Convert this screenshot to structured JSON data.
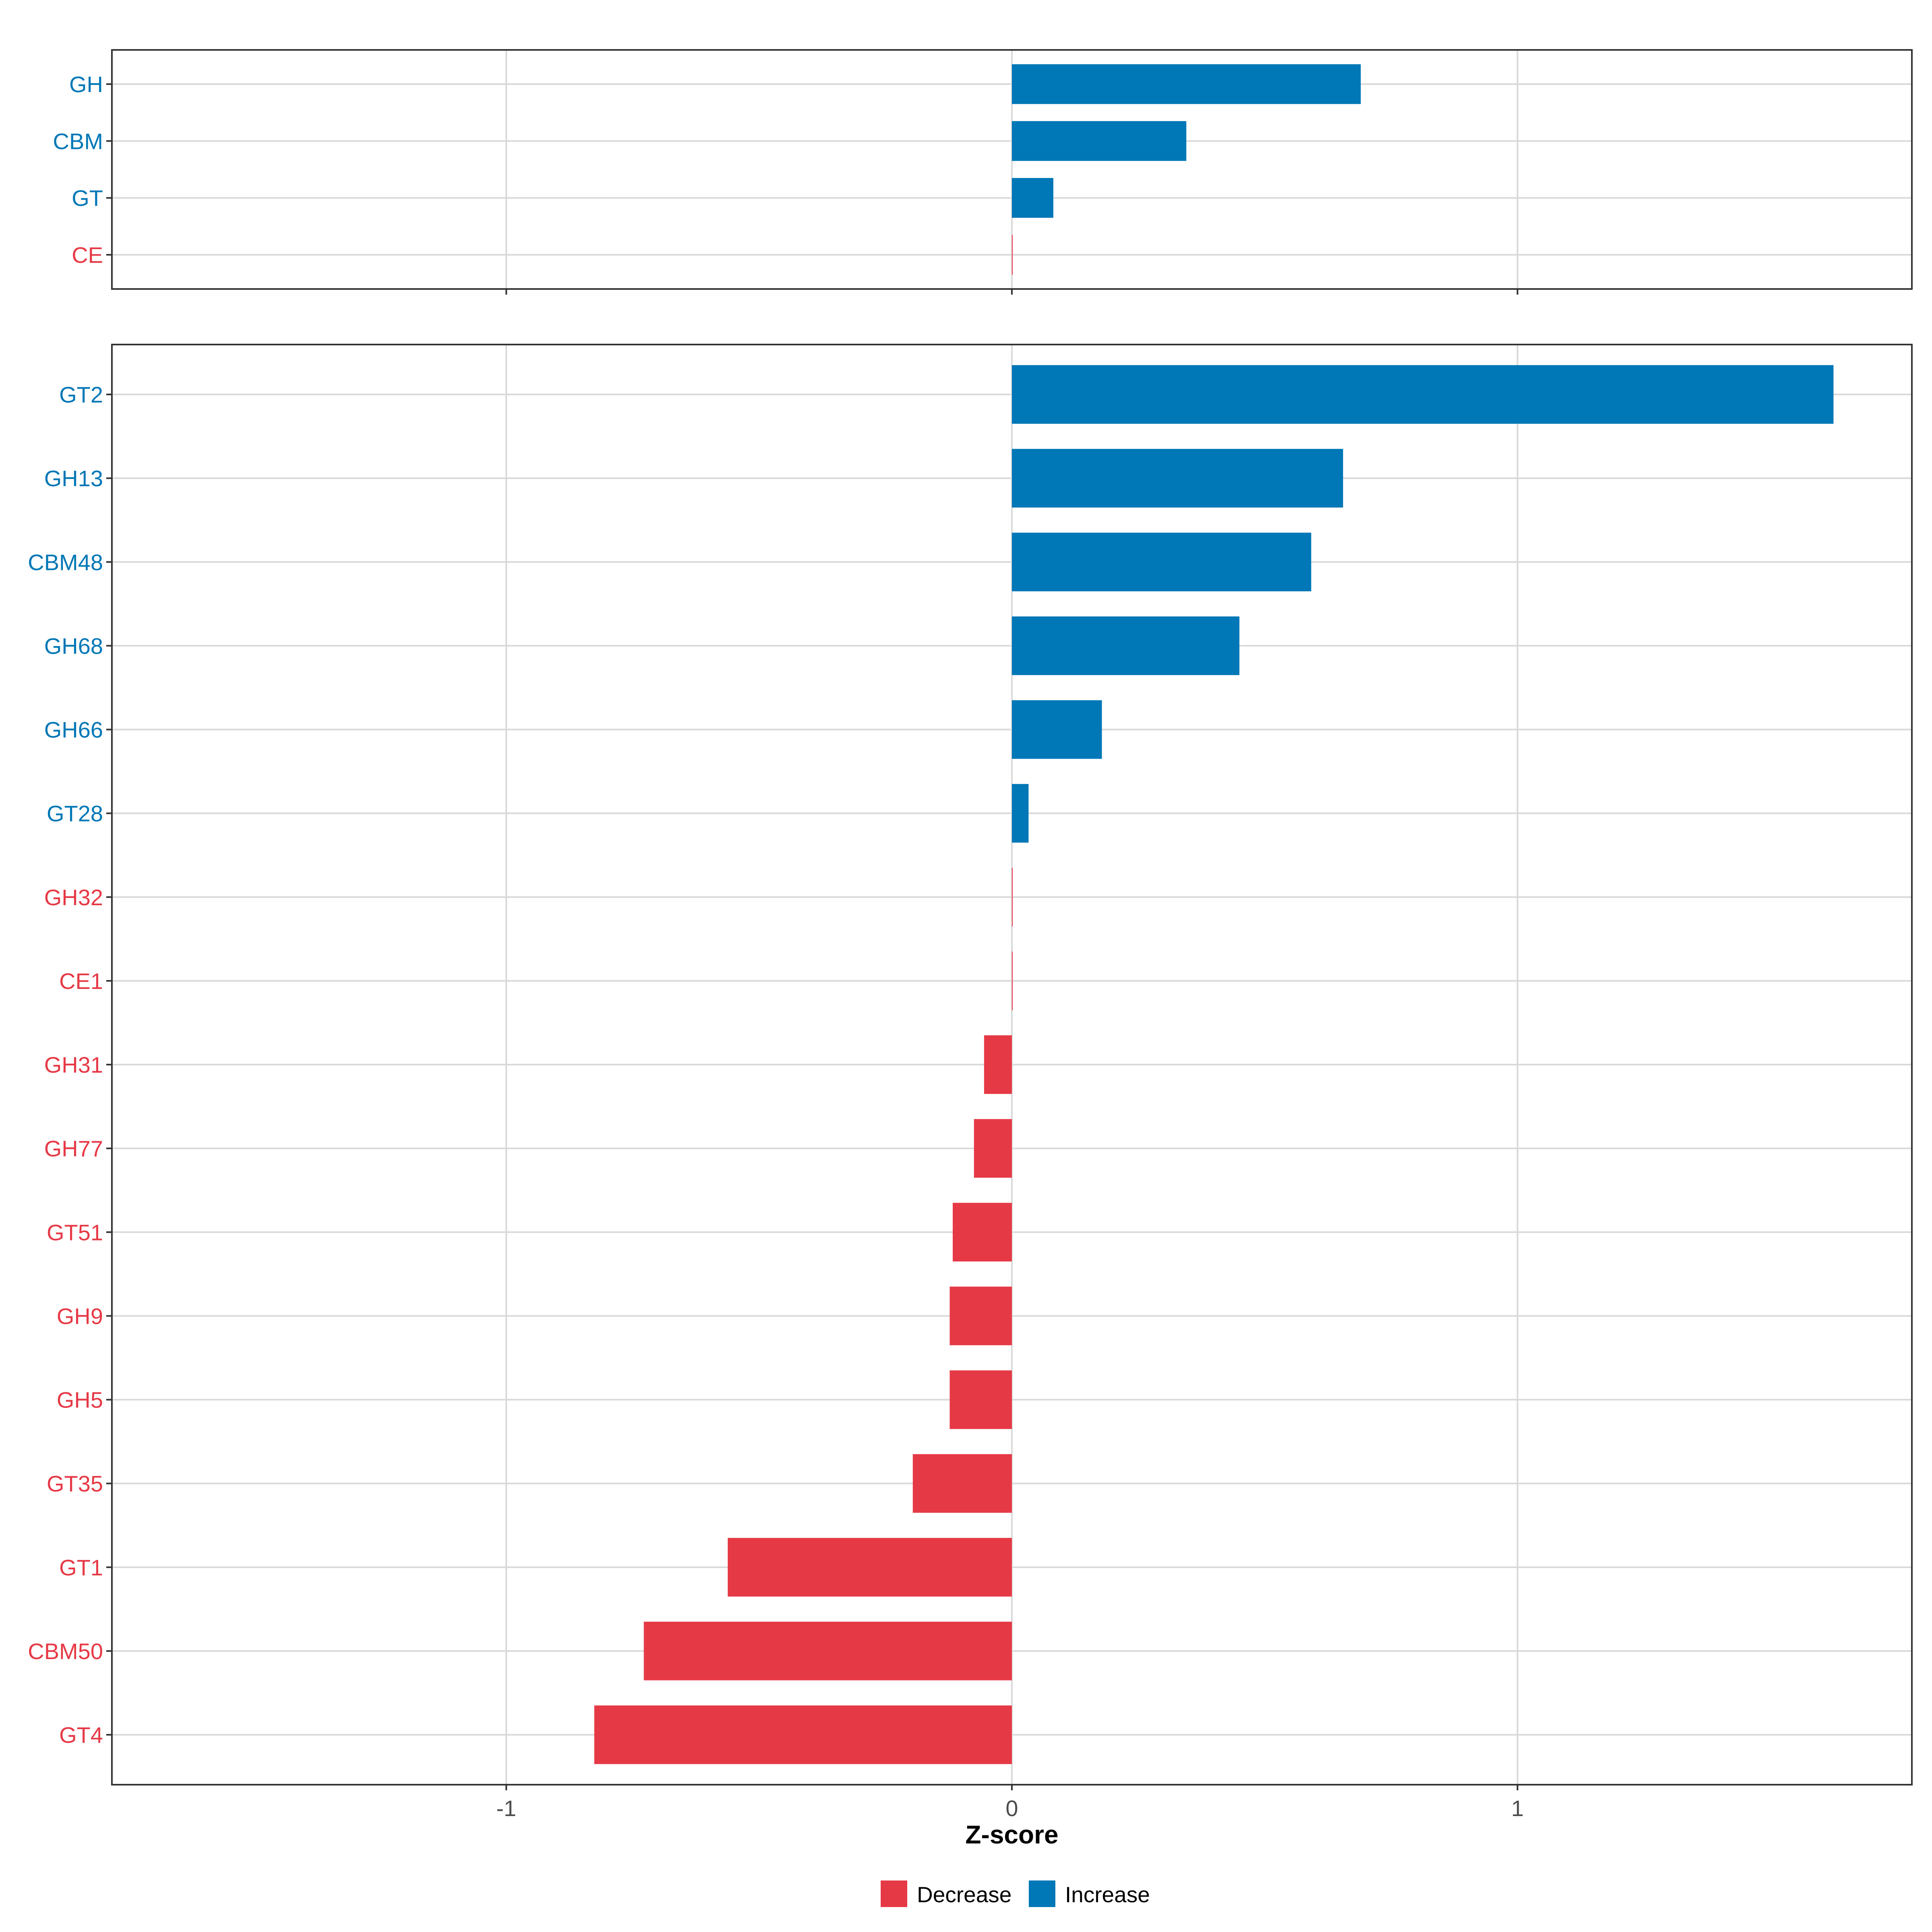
{
  "colors": {
    "decrease": "#E63946",
    "increase": "#0077B6",
    "grid": "#D9D9D9",
    "panel_border": "#333333",
    "tick_text": "#4D4D4D",
    "axis_title": "#000000"
  },
  "chart_data": [
    {
      "type": "bar",
      "orientation": "horizontal",
      "panel": "top",
      "categories": [
        "GH",
        "CBM",
        "GT",
        "CE"
      ],
      "values": [
        0.69,
        0.345,
        0.082,
        0.0
      ],
      "direction": [
        "Increase",
        "Increase",
        "Increase",
        "Decrease"
      ],
      "xlim": [
        -1.78,
        1.78
      ],
      "xticks": [
        -1,
        0,
        1
      ],
      "grid": true
    },
    {
      "type": "bar",
      "orientation": "horizontal",
      "panel": "bottom",
      "categories": [
        "GT2",
        "GH13",
        "CBM48",
        "GH68",
        "GH66",
        "GT28",
        "GH32",
        "CE1",
        "GH31",
        "GH77",
        "GT51",
        "GH9",
        "GH5",
        "GT35",
        "GT1",
        "CBM50",
        "GT4"
      ],
      "values": [
        1.625,
        0.655,
        0.592,
        0.45,
        0.178,
        0.033,
        0.0,
        0.0,
        -0.055,
        -0.075,
        -0.117,
        -0.123,
        -0.123,
        -0.196,
        -0.562,
        -0.728,
        -0.826
      ],
      "direction": [
        "Increase",
        "Increase",
        "Increase",
        "Increase",
        "Increase",
        "Increase",
        "Decrease",
        "Decrease",
        "Decrease",
        "Decrease",
        "Decrease",
        "Decrease",
        "Decrease",
        "Decrease",
        "Decrease",
        "Decrease",
        "Decrease"
      ],
      "xlim": [
        -1.78,
        1.78
      ],
      "xticks": [
        -1,
        0,
        1
      ],
      "xtick_labels": [
        "-1",
        "0",
        "1"
      ],
      "xlabel": "Z-score",
      "grid": true
    }
  ],
  "legend": {
    "placement": "bottom",
    "items": [
      {
        "label": "Decrease",
        "color": "#E63946"
      },
      {
        "label": "Increase",
        "color": "#0077B6"
      }
    ]
  }
}
